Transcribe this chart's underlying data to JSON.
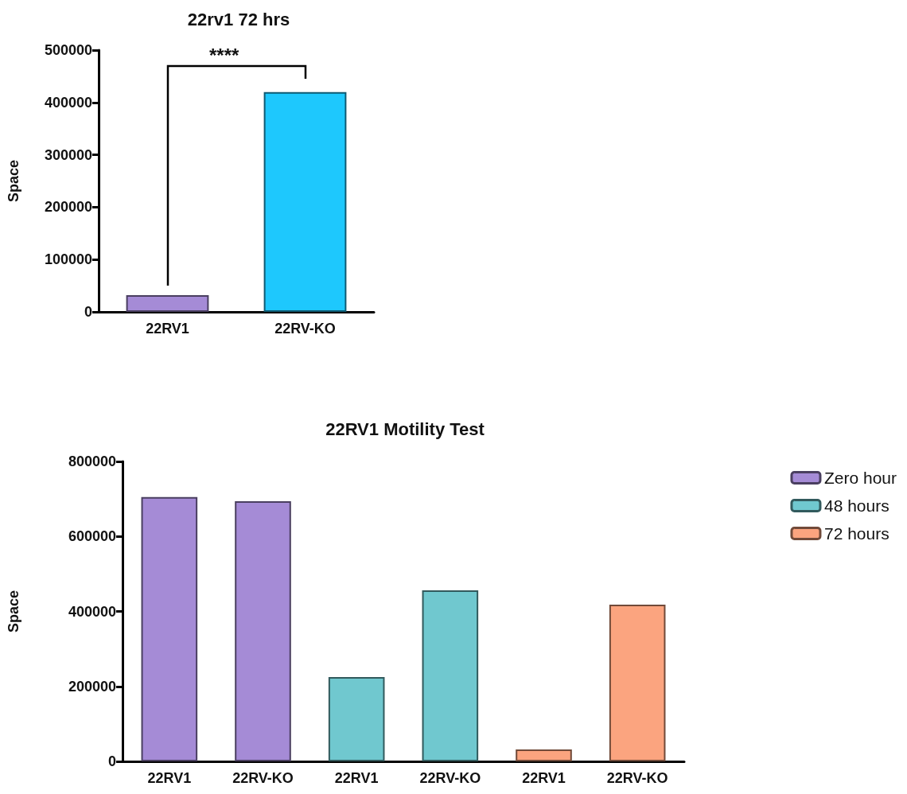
{
  "chart_data": [
    {
      "type": "bar",
      "title": "22rv1 72 hrs",
      "ylabel": "Space",
      "categories": [
        "22RV1",
        "22RV-KO"
      ],
      "values": [
        32000,
        420000
      ],
      "colors": [
        "#a58bd6",
        "#1ec8fd"
      ],
      "ylim": [
        0,
        500000
      ],
      "yticks": [
        0,
        100000,
        200000,
        300000,
        400000,
        500000
      ],
      "grid": false,
      "legend": false,
      "annotations": [
        "****"
      ]
    },
    {
      "type": "bar",
      "title": "22RV1 Motility Test",
      "ylabel": "Space",
      "categories": [
        "22RV1",
        "22RV-KO",
        "22RV1",
        "22RV-KO",
        "22RV1",
        "22RV-KO"
      ],
      "ylim": [
        0,
        800000
      ],
      "yticks": [
        0,
        200000,
        400000,
        600000,
        800000
      ],
      "grid": false,
      "legend": "right",
      "series": [
        {
          "name": "Zero hour",
          "color": "#a58bd6",
          "values": [
            705000,
            694000,
            null,
            null,
            null,
            null
          ]
        },
        {
          "name": "48 hours",
          "color": "#70c8cf",
          "values": [
            null,
            null,
            225000,
            456000,
            null,
            null
          ]
        },
        {
          "name": "72 hours",
          "color": "#fba47f",
          "values": [
            null,
            null,
            null,
            null,
            32000,
            418000
          ]
        }
      ]
    }
  ]
}
